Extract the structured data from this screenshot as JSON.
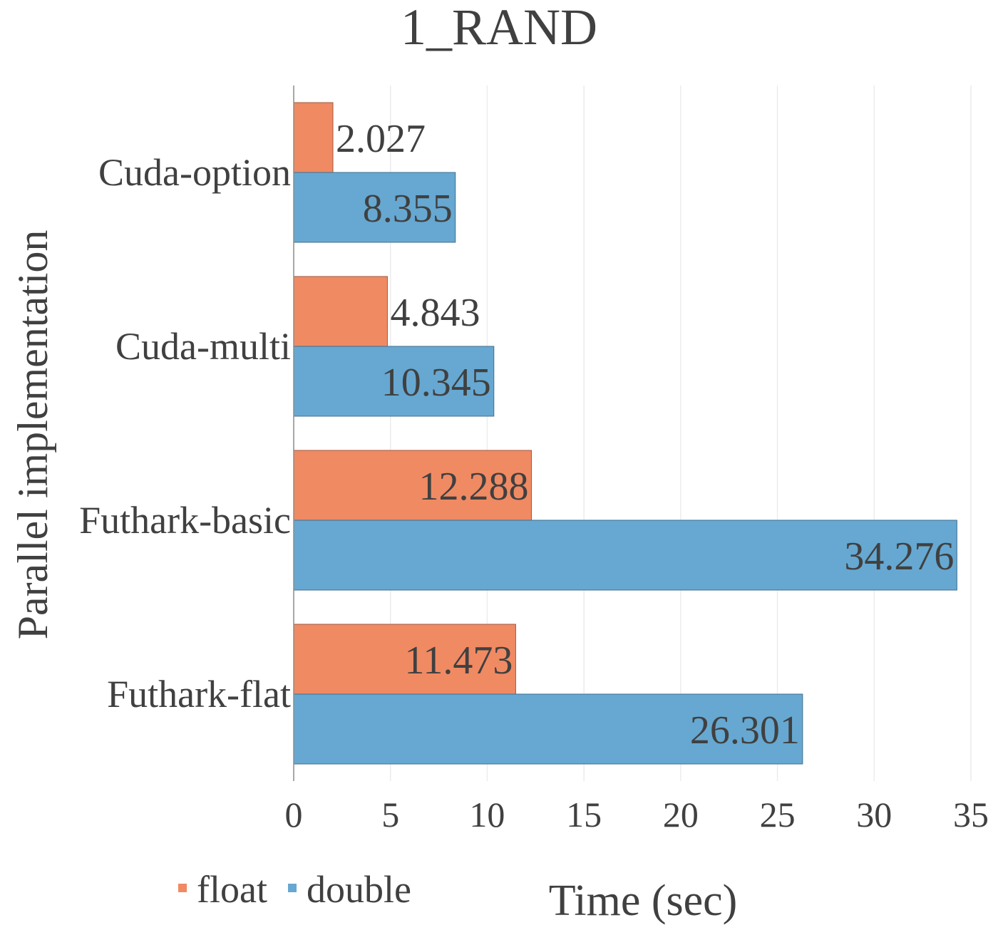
{
  "chart_data": {
    "type": "bar",
    "orientation": "horizontal",
    "title": "1_RAND",
    "xlabel": "Time (sec)",
    "ylabel": "Parallel implementation",
    "categories": [
      "Cuda-option",
      "Cuda-multi",
      "Futhark-basic",
      "Futhark-flat"
    ],
    "series": [
      {
        "name": "float",
        "values": [
          2.027,
          4.843,
          12.288,
          11.473
        ],
        "labels": [
          "2.027",
          "4.843",
          "12.288",
          "11.473"
        ],
        "color": "#F08A63"
      },
      {
        "name": "double",
        "values": [
          8.355,
          10.345,
          34.276,
          26.301
        ],
        "labels": [
          "8.355",
          "10.345",
          "34.276",
          "26.301"
        ],
        "color": "#66A8D1"
      }
    ],
    "xlim": [
      0,
      35
    ],
    "xticks": [
      0,
      5,
      10,
      15,
      20,
      25,
      30,
      35
    ],
    "grid": true,
    "legend_position": "bottom-left"
  }
}
